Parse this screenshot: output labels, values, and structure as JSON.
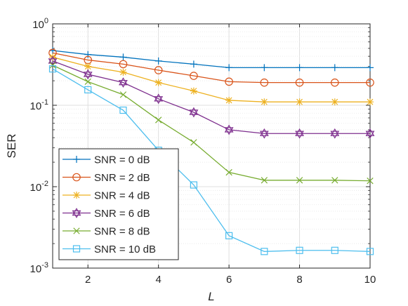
{
  "chart_data": {
    "type": "line",
    "xlabel": "L",
    "ylabel": "SER",
    "xlim": [
      1,
      10
    ],
    "ylim": [
      0.001,
      1
    ],
    "yscale": "log",
    "grid": true,
    "minor_grid": true,
    "legend_position": "lower-left",
    "x": [
      1,
      2,
      3,
      4,
      5,
      6,
      7,
      8,
      9,
      10
    ],
    "x_ticks": [
      {
        "value": 2,
        "label": "2"
      },
      {
        "value": 4,
        "label": "4"
      },
      {
        "value": 6,
        "label": "6"
      },
      {
        "value": 8,
        "label": "8"
      },
      {
        "value": 10,
        "label": "10"
      }
    ],
    "y_ticks": [
      {
        "value": 1,
        "base": "10",
        "exp": "0"
      },
      {
        "value": 0.1,
        "base": "10",
        "exp": "-1"
      },
      {
        "value": 0.01,
        "base": "10",
        "exp": "-2"
      },
      {
        "value": 0.001,
        "base": "10",
        "exp": "-3"
      }
    ],
    "series": [
      {
        "name": "SNR = 0 dB",
        "color": "#0072BD",
        "marker": "plus",
        "values": [
          0.47,
          0.42,
          0.39,
          0.35,
          0.32,
          0.29,
          0.29,
          0.29,
          0.29,
          0.29
        ]
      },
      {
        "name": "SNR = 2 dB",
        "color": "#D95319",
        "marker": "circle",
        "values": [
          0.44,
          0.36,
          0.32,
          0.27,
          0.23,
          0.195,
          0.19,
          0.19,
          0.19,
          0.19
        ]
      },
      {
        "name": "SNR = 4 dB",
        "color": "#EDB120",
        "marker": "asterisk",
        "values": [
          0.39,
          0.3,
          0.255,
          0.19,
          0.15,
          0.115,
          0.11,
          0.11,
          0.11,
          0.11
        ]
      },
      {
        "name": "SNR = 6 dB",
        "color": "#7E2F8E",
        "marker": "hexagram",
        "values": [
          0.35,
          0.24,
          0.19,
          0.12,
          0.082,
          0.05,
          0.045,
          0.045,
          0.045,
          0.045
        ]
      },
      {
        "name": "SNR = 8 dB",
        "color": "#77AC30",
        "marker": "x",
        "values": [
          0.31,
          0.195,
          0.135,
          0.066,
          0.035,
          0.015,
          0.012,
          0.012,
          0.012,
          0.0118
        ]
      },
      {
        "name": "SNR = 10 dB",
        "color": "#4DBEEE",
        "marker": "square",
        "values": [
          0.28,
          0.155,
          0.087,
          0.028,
          0.0105,
          0.0025,
          0.0016,
          0.00165,
          0.00165,
          0.0016
        ]
      }
    ]
  }
}
